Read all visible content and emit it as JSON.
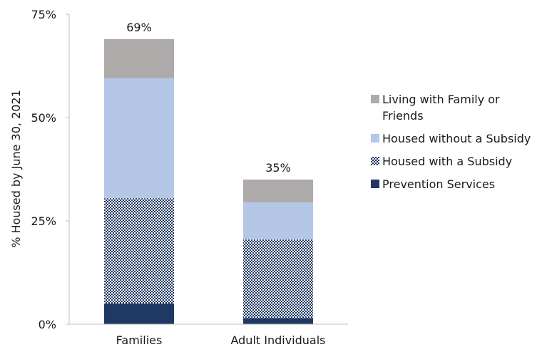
{
  "chart_data": {
    "type": "bar",
    "stacked": true,
    "categories": [
      "Families",
      "Adult Individuals"
    ],
    "series": [
      {
        "name": "Prevention Services",
        "values": [
          5,
          1.5
        ],
        "color": "#203864",
        "pattern": "solid"
      },
      {
        "name": "Housed with a Subsidy",
        "values": [
          25.5,
          19
        ],
        "color": "#203864",
        "pattern": "checker"
      },
      {
        "name": "Housed without a Subsidy",
        "values": [
          29,
          9
        ],
        "color": "#b4c7e7",
        "pattern": "solid"
      },
      {
        "name": "Living with Family or Friends",
        "values": [
          9.5,
          5.5
        ],
        "color": "#aeaaaa",
        "pattern": "solid"
      }
    ],
    "totals": [
      "69%",
      "35%"
    ],
    "ylabel": "% Housed by June 30, 2021",
    "xlabel": "",
    "ylim": [
      0,
      75
    ],
    "yticks": [
      0,
      25,
      50,
      75
    ],
    "ytick_labels": [
      "0%",
      "25%",
      "50%",
      "75%"
    ],
    "grid": false,
    "legend_position": "right",
    "legend_order": [
      "Living with Family or Friends",
      "Housed without a Subsidy",
      "Housed with a Subsidy",
      "Prevention Services"
    ]
  }
}
